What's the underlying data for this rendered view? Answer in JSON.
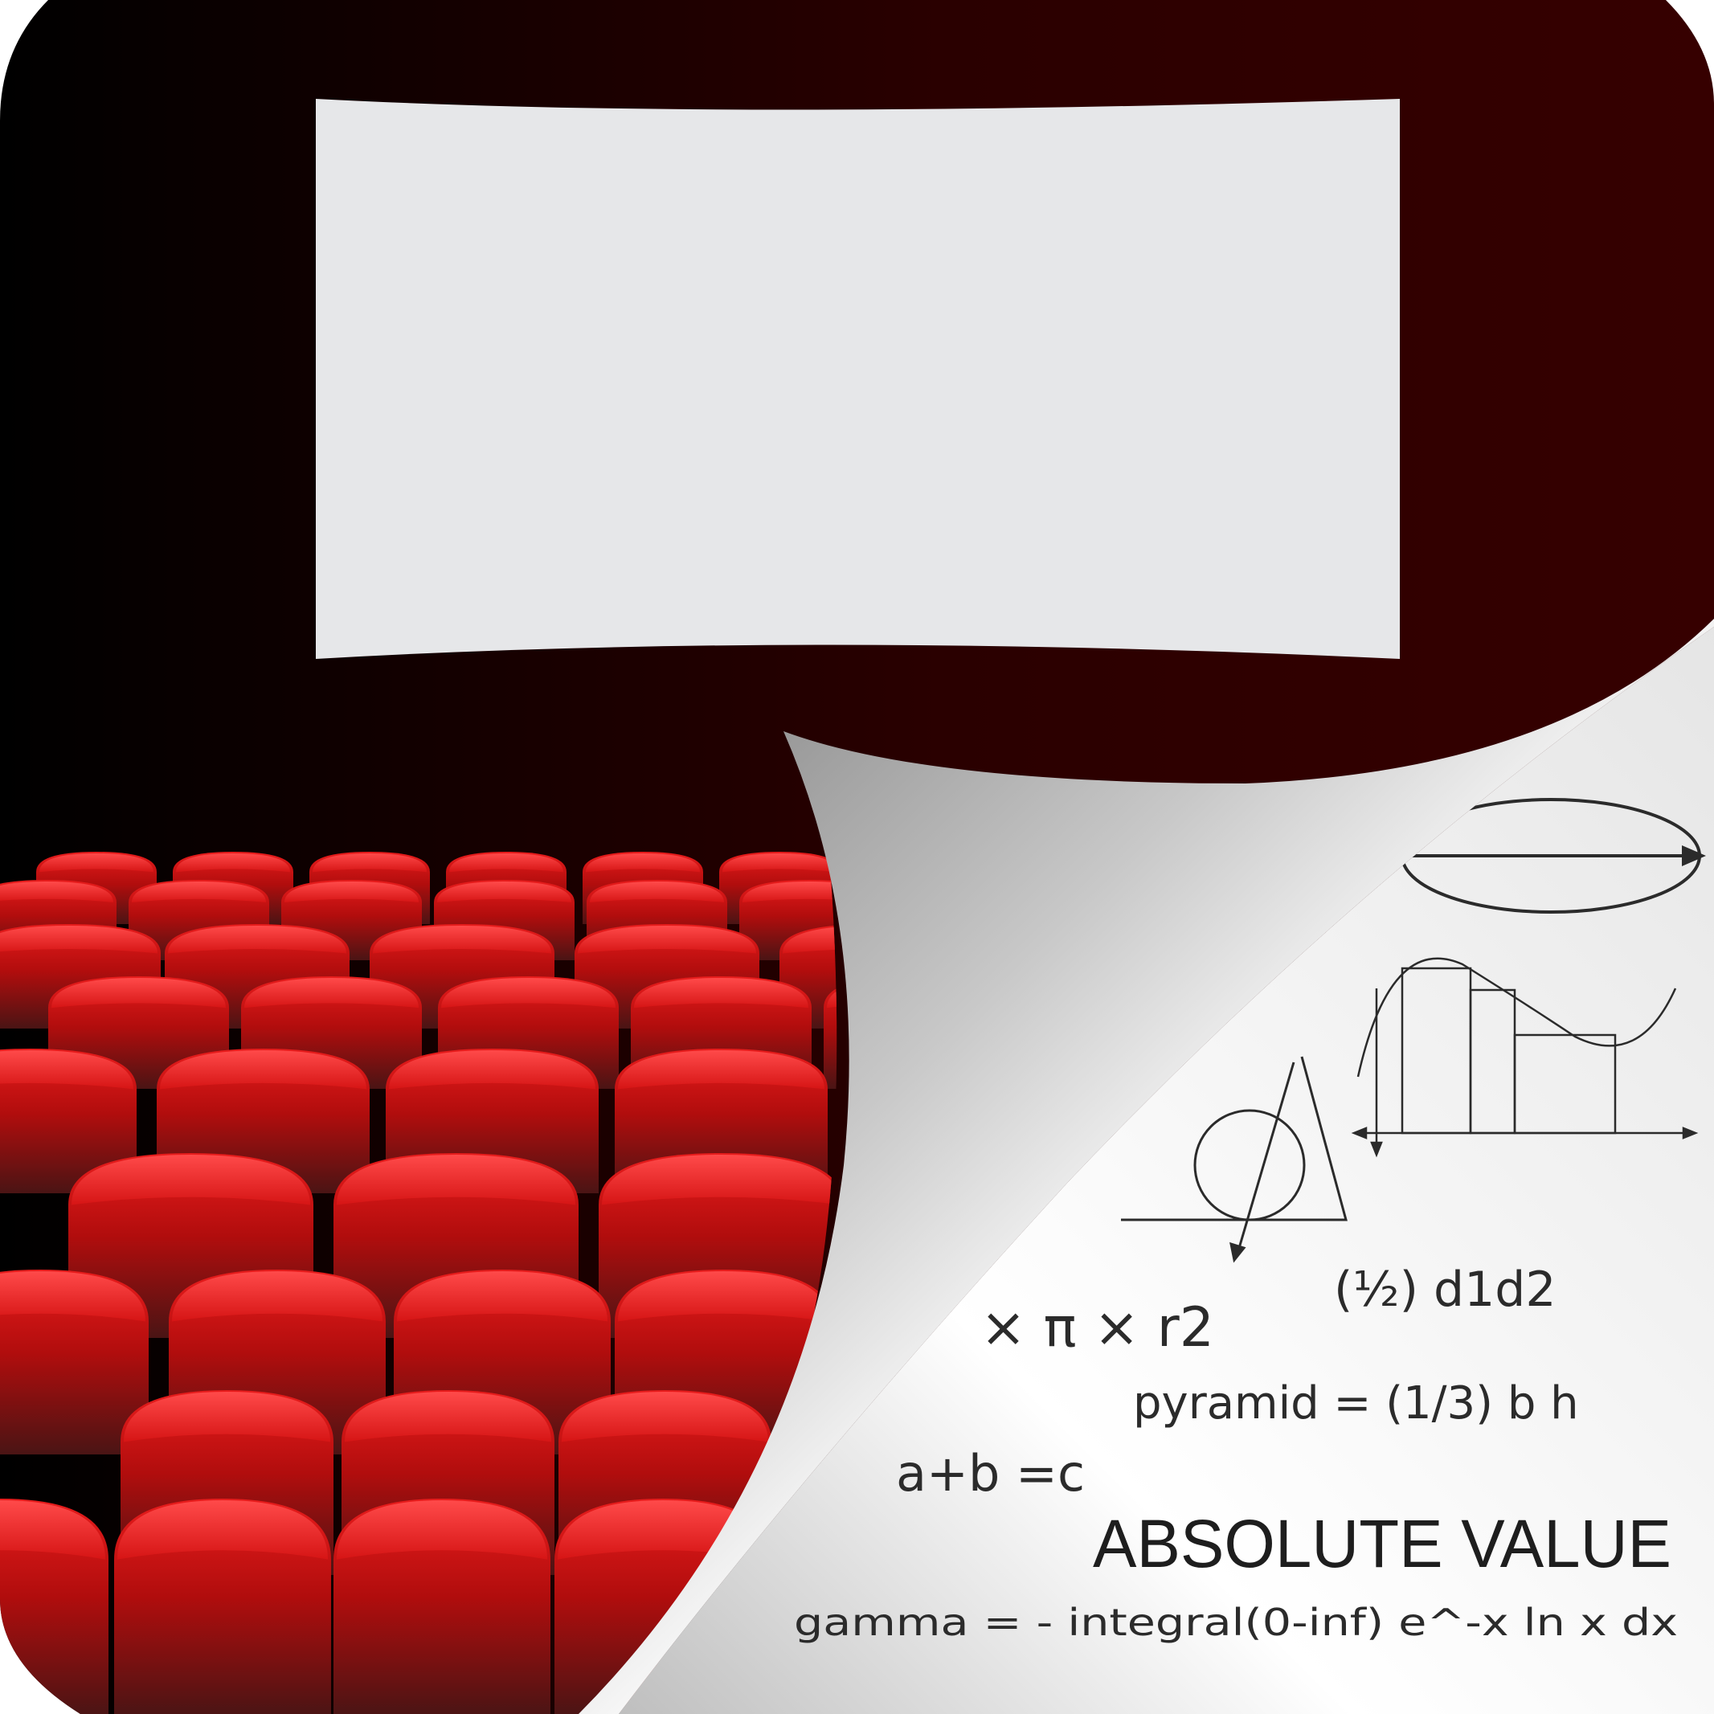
{
  "scene": {
    "colors": {
      "background_dark": "#000000",
      "background_red": "#330000",
      "screen": "#e6e7e9",
      "seat_top": "#f23a3a",
      "seat_mid": "#b40f0f",
      "seat_bottom": "#3a1414",
      "page": "#f2f2f2",
      "ink": "#2b2b2b"
    },
    "screen_label": "",
    "icons": {
      "cinema": "cinema-hall-icon",
      "page_curl": "page-curl-icon"
    }
  },
  "page": {
    "formulas": {
      "rhombus": "(½) d1d2",
      "circle": "× π × r2",
      "pyramid": "pyramid = (1/3) b h",
      "sum": "a+b =c",
      "heading": "ABSOLUTE VALUE",
      "gamma": "gamma = - integral(0-inf) e^-x ln x dx"
    },
    "sketches": [
      "ellipse-sketch",
      "integral-graph-sketch",
      "cone-sketch"
    ]
  }
}
